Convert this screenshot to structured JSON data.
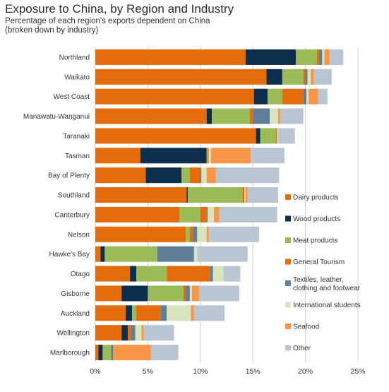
{
  "chart_data": {
    "type": "bar",
    "orientation": "horizontal",
    "stacked": true,
    "title": "Exposure to China, by Region and Industry",
    "subtitle_lines": [
      "Percentage of each region's exports dependent on China",
      "(broken down by industry)"
    ],
    "xlim": [
      0,
      25
    ],
    "x_ticks": [
      "0%",
      "5%",
      "10%",
      "15%",
      "20%",
      "25%"
    ],
    "grid": true,
    "legend_position": "right",
    "categories": [
      "Northland",
      "Waikato",
      "West Coast",
      "Manawatu-Wanganui",
      "Taranaki",
      "Tasman",
      "Bay of Plenty",
      "Southland",
      "Canterbury",
      "Nelson",
      "Hawke's Bay",
      "Otago",
      "Gisborne",
      "Auckland",
      "Wellington",
      "Marlborough"
    ],
    "series": [
      {
        "name": "Dairy products",
        "color": "#e46c0a",
        "values": [
          14.3,
          16.3,
          15.1,
          10.6,
          15.3,
          4.3,
          4.8,
          8.7,
          8.0,
          8.6,
          0.5,
          3.3,
          2.5,
          2.9,
          2.5,
          0.3
        ]
      },
      {
        "name": "Wood products",
        "color": "#0d2e4c",
        "values": [
          4.8,
          1.5,
          1.3,
          0.5,
          0.4,
          6.3,
          3.4,
          0.1,
          0.0,
          0.0,
          0.4,
          0.6,
          2.5,
          0.6,
          0.6,
          0.4
        ]
      },
      {
        "name": "Meat products",
        "color": "#9bbb59",
        "values": [
          2.0,
          2.0,
          1.4,
          3.6,
          1.5,
          0.1,
          0.8,
          5.2,
          2.0,
          0.4,
          5.0,
          2.9,
          3.4,
          0.4,
          0.0,
          0.8
        ]
      },
      {
        "name": "General Tourism",
        "color": "#e46c0a",
        "values": [
          0.2,
          0.2,
          2.0,
          0.3,
          0.1,
          0.1,
          1.0,
          0.2,
          0.6,
          0.3,
          0.0,
          4.1,
          0.2,
          2.3,
          0.3,
          0.0
        ]
      },
      {
        "name": "Textiles, leather, clothing and footwear",
        "color": "#5f7f99",
        "values": [
          0.3,
          0.2,
          0.3,
          1.6,
          0.0,
          0.0,
          0.1,
          0.0,
          0.1,
          0.4,
          3.5,
          0.3,
          0.4,
          0.6,
          0.4,
          0.2
        ]
      },
      {
        "name": "International students",
        "color": "#d7e4bd",
        "values": [
          0.2,
          0.3,
          0.2,
          0.8,
          0.1,
          0.2,
          0.5,
          0.1,
          0.6,
          0.9,
          0.3,
          1.0,
          0.2,
          2.3,
          0.6,
          0.0
        ]
      },
      {
        "name": "Seafood",
        "color": "#f79646",
        "values": [
          0.5,
          0.3,
          0.9,
          0.2,
          0.0,
          3.8,
          0.9,
          0.2,
          0.5,
          0.2,
          0.0,
          0.0,
          0.7,
          0.3,
          0.2,
          3.6
        ]
      },
      {
        "name": "Other",
        "color": "#b8c5d3",
        "values": [
          1.3,
          1.7,
          0.9,
          2.2,
          1.6,
          3.2,
          6.0,
          2.9,
          5.5,
          4.8,
          4.8,
          1.6,
          3.8,
          2.9,
          2.9,
          2.6
        ]
      }
    ]
  }
}
